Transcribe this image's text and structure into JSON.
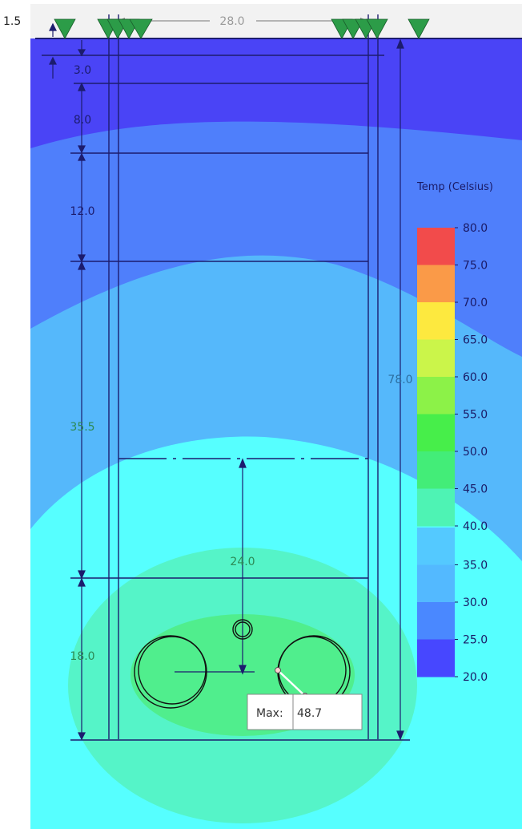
{
  "plot": {
    "top_left_dimension": "1.5",
    "dimensions": {
      "width_top": "28.0",
      "d3": "3.0",
      "d8": "8.0",
      "d12": "12.0",
      "d35": "35.5",
      "d18": "18.0",
      "height_total": "78.0",
      "d24": "24.0"
    },
    "max_probe": {
      "label": "Max:",
      "value": "48.7"
    }
  },
  "legend": {
    "title": "Temp (Celsius)",
    "bands": [
      {
        "from": 75.0,
        "to": 80.0,
        "color": "#f24b4b"
      },
      {
        "from": 70.0,
        "to": 75.0,
        "color": "#fa9a48"
      },
      {
        "from": 65.0,
        "to": 70.0,
        "color": "#fde93f"
      },
      {
        "from": 60.0,
        "to": 65.0,
        "color": "#cbf54a"
      },
      {
        "from": 55.0,
        "to": 60.0,
        "color": "#8cf248"
      },
      {
        "from": 50.0,
        "to": 55.0,
        "color": "#47ee4a"
      },
      {
        "from": 45.0,
        "to": 50.0,
        "color": "#43ed78"
      },
      {
        "from": 40.0,
        "to": 45.0,
        "color": "#4ef3b4"
      },
      {
        "from": 35.0,
        "to": 40.0,
        "color": "#54c9ff"
      },
      {
        "from": 30.0,
        "to": 35.0,
        "color": "#53b9ff"
      },
      {
        "from": 25.0,
        "to": 30.0,
        "color": "#4a88ff"
      },
      {
        "from": 20.0,
        "to": 25.0,
        "color": "#4747ff"
      }
    ],
    "labels": [
      "80.0",
      "75.0",
      "70.0",
      "65.0",
      "60.0",
      "55.0",
      "50.0",
      "45.0",
      "40.0",
      "35.0",
      "30.0",
      "25.0",
      "20.0"
    ]
  },
  "colors": {
    "outer": "#4a44f6",
    "band2": "#4f7ffb",
    "band3": "#55b8fb",
    "band4": "#56ffff",
    "band5": "#55f4c8",
    "hot": "#50ee8d",
    "dimline_dark": "#1c1c6e",
    "dimline_green": "#2d8a55"
  }
}
